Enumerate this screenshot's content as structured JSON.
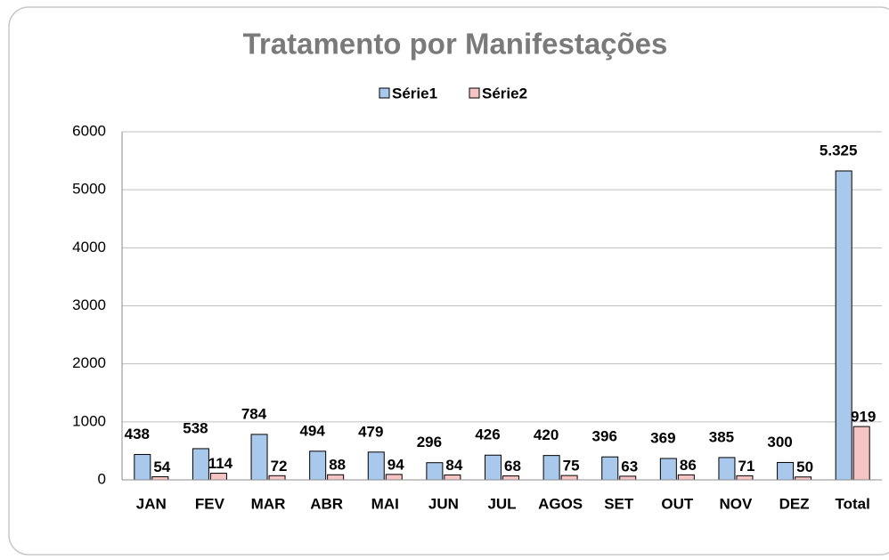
{
  "chart_data": {
    "type": "bar",
    "title": "Tratamento por Manifestações",
    "categories": [
      "JAN",
      "FEV",
      "MAR",
      "ABR",
      "MAI",
      "JUN",
      "JUL",
      "AGOS",
      "SET",
      "OUT",
      "NOV",
      "DEZ",
      "Total"
    ],
    "series": [
      {
        "name": "Série1",
        "color": "#a9c9ec",
        "values": [
          438,
          538,
          784,
          494,
          479,
          296,
          426,
          420,
          396,
          369,
          385,
          300,
          5325
        ],
        "value_labels": [
          "438",
          "538",
          "784",
          "494",
          "479",
          "296",
          "426",
          "420",
          "396",
          "369",
          "385",
          "300",
          "5.325"
        ]
      },
      {
        "name": "Série2",
        "color": "#f6c4c4",
        "values": [
          54,
          114,
          72,
          88,
          94,
          84,
          68,
          75,
          63,
          86,
          71,
          50,
          919
        ]
      }
    ],
    "ylim": [
      0,
      6000
    ],
    "yticks": [
      0,
      1000,
      2000,
      3000,
      4000,
      5000,
      6000
    ],
    "grid": true,
    "legend": "top"
  }
}
